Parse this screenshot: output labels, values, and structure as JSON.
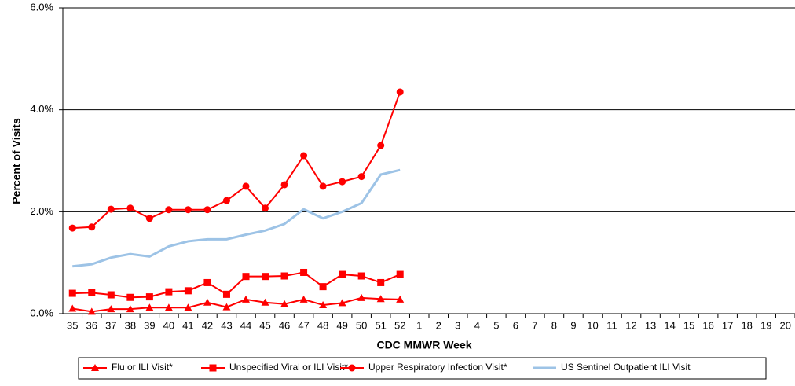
{
  "chart_data": {
    "type": "line",
    "x_label": "CDC MMWR Week",
    "y_label": "Percent of Visits",
    "categories": [
      "35",
      "36",
      "37",
      "38",
      "39",
      "40",
      "41",
      "42",
      "43",
      "44",
      "45",
      "46",
      "47",
      "48",
      "49",
      "50",
      "51",
      "52",
      "1",
      "2",
      "3",
      "4",
      "5",
      "6",
      "7",
      "8",
      "9",
      "10",
      "11",
      "12",
      "13",
      "14",
      "15",
      "16",
      "17",
      "18",
      "19",
      "20"
    ],
    "series": [
      {
        "name": "Flu or ILI Visit*",
        "color": "#ff0000",
        "marker": "triangle",
        "values": [
          0.1,
          0.04,
          0.09,
          0.09,
          0.12,
          0.12,
          0.12,
          0.22,
          0.13,
          0.28,
          0.22,
          0.19,
          0.28,
          0.17,
          0.21,
          0.31,
          0.29,
          0.28,
          null,
          null,
          null,
          null,
          null,
          null,
          null,
          null,
          null,
          null,
          null,
          null,
          null,
          null,
          null,
          null,
          null,
          null,
          null,
          null
        ]
      },
      {
        "name": "Unspecified Viral or ILI Visit*",
        "color": "#ff0000",
        "marker": "square",
        "values": [
          0.4,
          0.41,
          0.37,
          0.32,
          0.33,
          0.43,
          0.45,
          0.61,
          0.38,
          0.73,
          0.73,
          0.74,
          0.81,
          0.53,
          0.77,
          0.74,
          0.61,
          0.77,
          null,
          null,
          null,
          null,
          null,
          null,
          null,
          null,
          null,
          null,
          null,
          null,
          null,
          null,
          null,
          null,
          null,
          null,
          null,
          null
        ]
      },
      {
        "name": "Upper Respiratory Infection Visit*",
        "color": "#ff0000",
        "marker": "circle",
        "values": [
          1.68,
          1.7,
          2.05,
          2.07,
          1.87,
          2.04,
          2.04,
          2.04,
          2.22,
          2.5,
          2.07,
          2.53,
          3.1,
          2.5,
          2.59,
          2.69,
          3.3,
          4.35,
          null,
          null,
          null,
          null,
          null,
          null,
          null,
          null,
          null,
          null,
          null,
          null,
          null,
          null,
          null,
          null,
          null,
          null,
          null,
          null
        ]
      },
      {
        "name": "US Sentinel Outpatient ILI Visit",
        "color": "#9dc3e6",
        "marker": "none",
        "values": [
          0.93,
          0.97,
          1.1,
          1.17,
          1.12,
          1.32,
          1.42,
          1.46,
          1.46,
          1.55,
          1.63,
          1.76,
          2.05,
          1.87,
          2.0,
          2.17,
          2.73,
          2.82,
          null,
          null,
          null,
          null,
          null,
          null,
          null,
          null,
          null,
          null,
          null,
          null,
          null,
          null,
          null,
          null,
          null,
          null,
          null,
          null
        ]
      }
    ],
    "ylim": [
      0,
      6
    ],
    "yticks": [
      {
        "value": 0,
        "label": "0.0%"
      },
      {
        "value": 2,
        "label": "2.0%"
      },
      {
        "value": 4,
        "label": "4.0%"
      },
      {
        "value": 6,
        "label": "6.0%"
      }
    ],
    "grid": true,
    "legend": "bottom"
  }
}
